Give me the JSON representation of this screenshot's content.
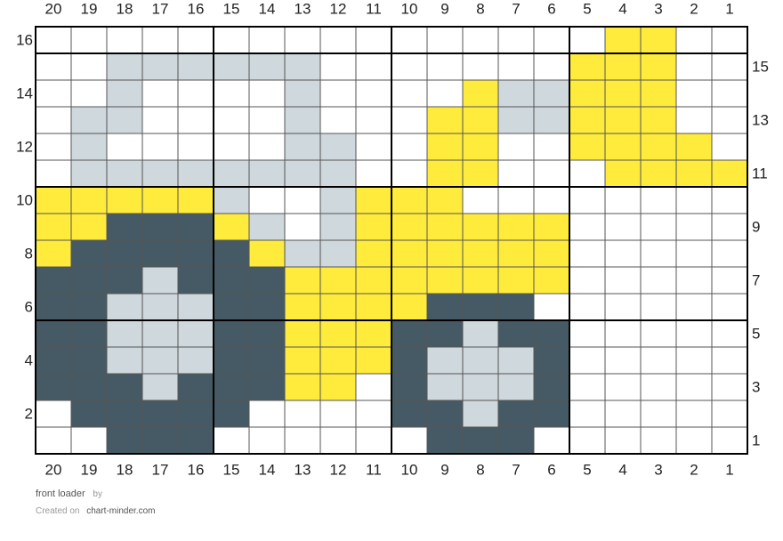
{
  "column_numbers": [
    20,
    19,
    18,
    17,
    16,
    15,
    14,
    13,
    12,
    11,
    10,
    9,
    8,
    7,
    6,
    5,
    4,
    3,
    2,
    1
  ],
  "row_numbers": [
    16,
    15,
    14,
    13,
    12,
    11,
    10,
    9,
    8,
    7,
    6,
    5,
    4,
    3,
    2,
    1
  ],
  "grid": {
    "palette": {
      "W": "#ffffff",
      "G": "#cfd8dc",
      "D": "#455a64",
      "Y": "#ffeb3b"
    },
    "rows": [
      "WWWWWWWWWWWWWWWWYYWW",
      "WWGGGGGGWWWWWWWYYYWW",
      "WWGWWWWGWWWWYGGYYYWW",
      "WGGWWWWGWWWYYGGYYYWW",
      "WGWWWWWGGWWYYWWYYYYW",
      "WGGGGGGGGWWYYWWWYYYY",
      "YYYYYGWWGYYYWWWWWWWW",
      "YYDDDYGWGYYYYYYWWWWW",
      "YDDDDDYGGYYYYYYWWWWW",
      "DDDGDDDYYYYYYYYWWWWW",
      "DDGGGDDYYYYDDDWWWWWW",
      "DDGGGDDYYYDDGDDWWWWW",
      "DDGGGDDYYYDGGGDWWWWW",
      "DDDGDDDYYWDGGGDWWWWW",
      "WDDDDDWWWWDDGDDWWWWW",
      "WWDDDWWWWWWDDDWWWWWW"
    ]
  },
  "footer": {
    "title": "front loader",
    "by": "by",
    "created": "Created on",
    "site": "chart-minder.com"
  }
}
